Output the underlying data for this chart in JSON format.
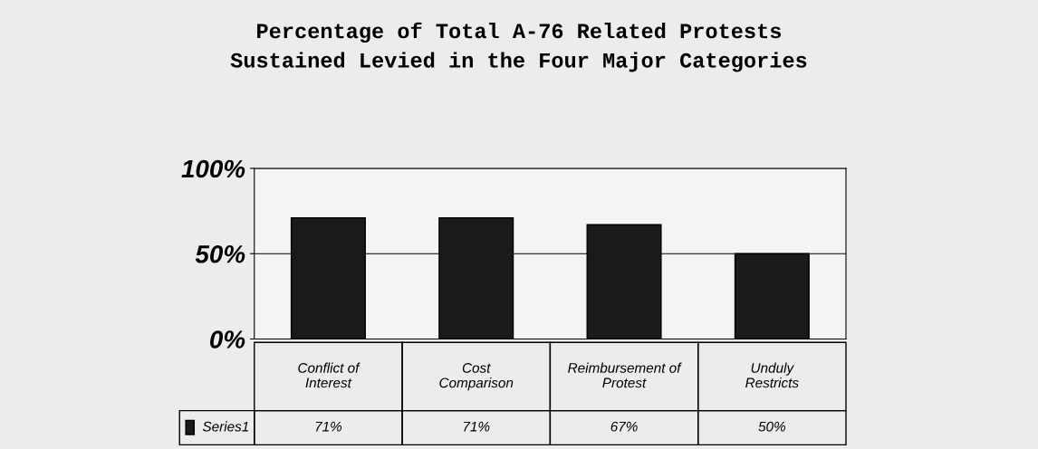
{
  "chart_data": {
    "type": "bar",
    "title": "Percentage of Total A-76 Related Protests\nSustained Levied in the Four Major Categories",
    "categories": [
      "Conflict of Interest",
      "Cost Comparison",
      "Reimbursement of Protest",
      "Unduly Restricts"
    ],
    "series": [
      {
        "name": "Series1",
        "color": "#1a1a1a",
        "values": [
          71,
          71,
          67,
          50
        ],
        "value_labels": [
          "71%",
          "71%",
          "67%",
          "50%"
        ]
      }
    ],
    "ylim": [
      0,
      100
    ],
    "yticks": [
      {
        "value": 0,
        "label": "0%"
      },
      {
        "value": 50,
        "label": "50%"
      },
      {
        "value": 100,
        "label": "100%"
      }
    ],
    "grid": "y"
  }
}
